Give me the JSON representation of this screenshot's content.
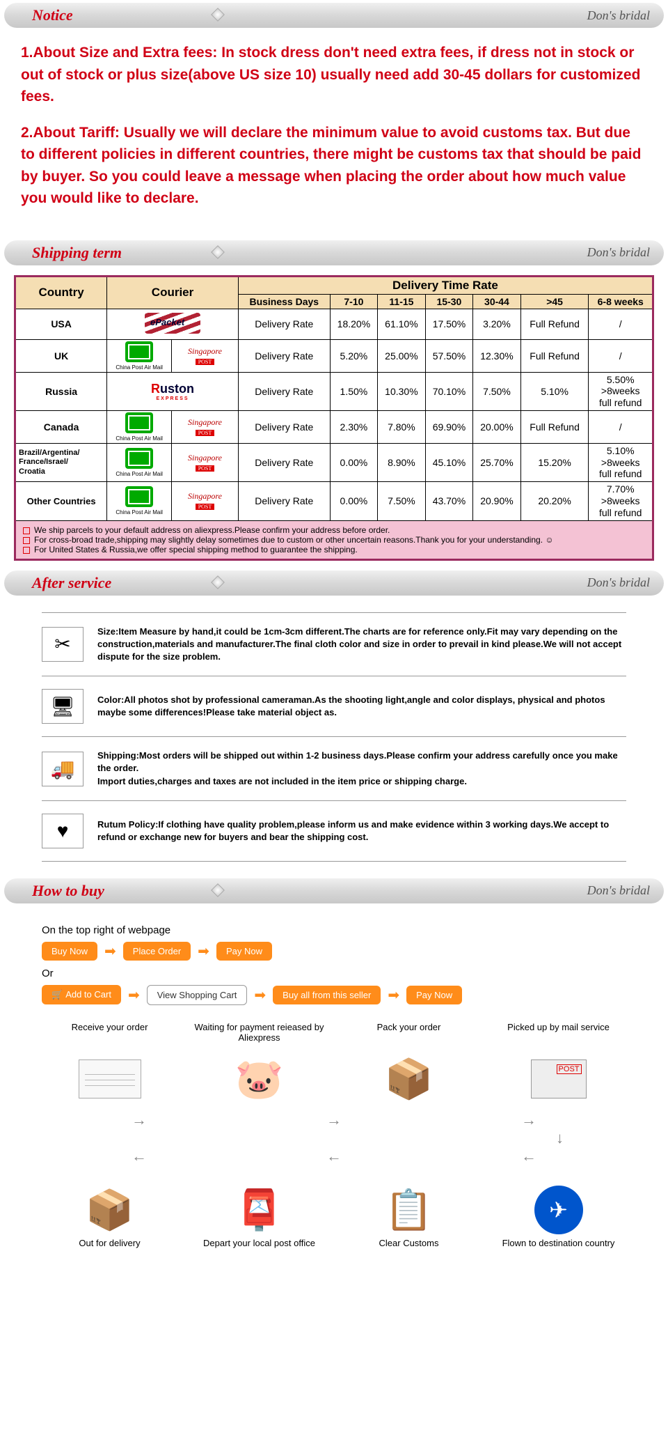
{
  "brand": "Don's bridal",
  "sections": {
    "notice": "Notice",
    "shipping": "Shipping term",
    "after": "After service",
    "howto": "How to buy"
  },
  "notice": {
    "p1": "1.About Size and Extra fees: In stock dress don't need extra fees, if dress not in stock or out of stock or plus size(above US size 10) usually need add 30-45 dollars for customized fees.",
    "p2": "2.About Tariff: Usually we will declare the minimum value to avoid customs tax. But due to different policies in different countries, there might be customs tax that should be paid by buyer. So you could leave a message when placing the order about how much value you would like to declare."
  },
  "ship": {
    "country_hdr": "Country",
    "courier_hdr": "Courier",
    "rate_hdr": "Delivery Time Rate",
    "cols": [
      "Business Days",
      "7-10",
      "11-15",
      "15-30",
      "30-44",
      ">45",
      "6-8 weeks"
    ],
    "label": "Delivery Rate",
    "rows": [
      {
        "country": "USA",
        "courier": "epacket",
        "vals": [
          "18.20%",
          "61.10%",
          "17.50%",
          "3.20%",
          "Full Refund",
          "/"
        ]
      },
      {
        "country": "UK",
        "courier": "cpam_sing",
        "vals": [
          "5.20%",
          "25.00%",
          "57.50%",
          "12.30%",
          "Full Refund",
          "/"
        ]
      },
      {
        "country": "Russia",
        "courier": "ruston",
        "vals": [
          "1.50%",
          "10.30%",
          "70.10%",
          "7.50%",
          "5.10%",
          "5.50%\n>8weeks\nfull refund"
        ]
      },
      {
        "country": "Canada",
        "courier": "cpam_sing",
        "vals": [
          "2.30%",
          "7.80%",
          "69.90%",
          "20.00%",
          "Full Refund",
          "/"
        ]
      },
      {
        "country": "Brazil/Argentina/\nFrance/Israel/\nCroatia",
        "courier": "cpam_sing",
        "small": true,
        "vals": [
          "0.00%",
          "8.90%",
          "45.10%",
          "25.70%",
          "15.20%",
          "5.10%\n>8weeks\nfull refund"
        ]
      },
      {
        "country": "Other Countries",
        "courier": "cpam_sing",
        "small2": true,
        "vals": [
          "0.00%",
          "7.50%",
          "43.70%",
          "20.90%",
          "20.20%",
          "7.70%\n>8weeks\nfull refund"
        ]
      }
    ],
    "notes": [
      "We ship parcels to your default address on aliexpress.Please confirm your address before order.",
      "For cross-broad trade,shipping may slightly delay sometimes due to custom or other uncertain reasons.Thank you for your understanding. ☺",
      "For United States & Russia,we offer special shipping method to guarantee the shipping."
    ]
  },
  "after": [
    {
      "icon": "✂",
      "text": "Size:Item Measure by hand,it could be 1cm-3cm different.The charts are for reference only.Fit may vary depending on the construction,materials and manufacturer.The final cloth color and size in order to prevail in kind please.We will not accept dispute for the size problem."
    },
    {
      "icon": "🖥",
      "text": "Color:All photos shot by professional cameraman.As the shooting light,angle and color displays, physical and photos maybe some differences!Please take material object as."
    },
    {
      "icon": "🚚",
      "text": "Shipping:Most orders will be shipped out within 1-2 business days.Please confirm your address carefully once you make the order.\nImport duties,charges and taxes are not included in the item price or shipping charge."
    },
    {
      "icon": "♥",
      "text": "Rutum Policy:If clothing have quality problem,please inform us and make evidence within 3 working days.We accept to refund or exchange new for buyers and bear the shipping cost."
    }
  ],
  "howto": {
    "top_text": "On the top right of webpage",
    "or": "Or",
    "row1": [
      "Buy Now",
      "Place Order",
      "Pay Now"
    ],
    "row2": [
      "Add to Cart",
      "View Shopping Cart",
      "Buy all from this seller",
      "Pay Now"
    ],
    "steps_top": [
      "Receive your order",
      "Waiting for payment reieased by Aliexpress",
      "Pack your order",
      "Picked up by mail service"
    ],
    "steps_bot": [
      "Out for delivery",
      "Depart your local post office",
      "Clear Customs",
      "Flown to destination country"
    ]
  }
}
